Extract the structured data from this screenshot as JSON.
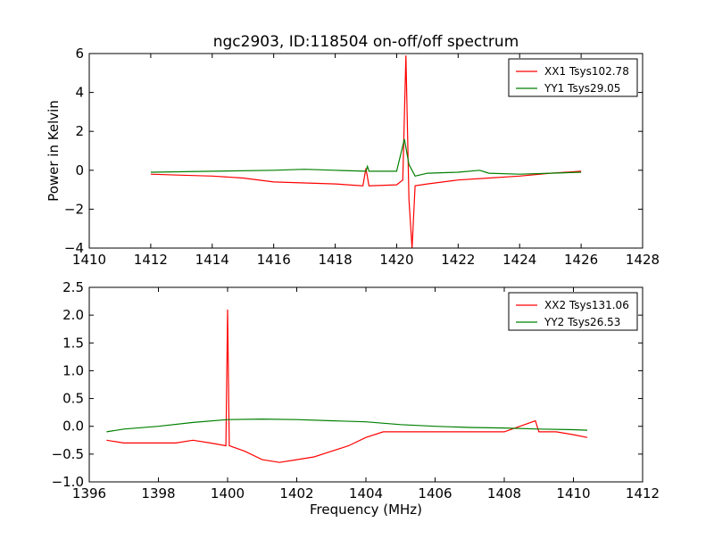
{
  "chart_data": [
    {
      "type": "line",
      "title": "ngc2903, ID:118504 on-off/off spectrum",
      "xlabel": "",
      "ylabel": "Power in Kelvin",
      "xlim": [
        1410,
        1428
      ],
      "ylim": [
        -4,
        6
      ],
      "xticks": [
        "1410",
        "1412",
        "1414",
        "1416",
        "1418",
        "1420",
        "1422",
        "1424",
        "1426",
        "1428"
      ],
      "yticks": [
        "−4",
        "−2",
        "0",
        "2",
        "4",
        "6"
      ],
      "grid": false,
      "legend_position": "top-right",
      "series": [
        {
          "name": "XX1 Tsys102.78",
          "color": "#ff0000",
          "x": [
            1412,
            1413,
            1414,
            1415,
            1416,
            1417,
            1418,
            1418.9,
            1419.0,
            1419.1,
            1420.0,
            1420.2,
            1420.3,
            1420.4,
            1420.5,
            1420.6,
            1421,
            1422,
            1423,
            1424,
            1425,
            1426
          ],
          "y": [
            -0.2,
            -0.25,
            -0.3,
            -0.4,
            -0.6,
            -0.65,
            -0.7,
            -0.8,
            0.1,
            -0.8,
            -0.75,
            -0.5,
            5.9,
            -1.5,
            -4.0,
            -0.8,
            -0.7,
            -0.5,
            -0.4,
            -0.3,
            -0.15,
            -0.05
          ]
        },
        {
          "name": "YY1 Tsys29.05",
          "color": "#008000",
          "x": [
            1412,
            1414,
            1416,
            1417,
            1418,
            1419,
            1419.05,
            1419.1,
            1420,
            1420.25,
            1420.4,
            1420.6,
            1421,
            1422,
            1422.7,
            1423,
            1424,
            1425,
            1426
          ],
          "y": [
            -0.1,
            -0.05,
            0.0,
            0.05,
            0.0,
            -0.05,
            0.2,
            -0.05,
            -0.05,
            1.6,
            0.3,
            -0.3,
            -0.15,
            -0.1,
            0.0,
            -0.15,
            -0.2,
            -0.15,
            -0.1
          ]
        }
      ]
    },
    {
      "type": "line",
      "title": "",
      "xlabel": "Frequency (MHz)",
      "ylabel": "",
      "xlim": [
        1396,
        1412
      ],
      "ylim": [
        -1.0,
        2.5
      ],
      "xticks": [
        "1396",
        "1398",
        "1400",
        "1402",
        "1404",
        "1406",
        "1408",
        "1410",
        "1412"
      ],
      "yticks": [
        "−1.0",
        "−0.5",
        "0.0",
        "0.5",
        "1.0",
        "1.5",
        "2.0",
        "2.5"
      ],
      "grid": false,
      "legend_position": "top-right",
      "series": [
        {
          "name": "XX2 Tsys131.06",
          "color": "#ff0000",
          "x": [
            1396.5,
            1397,
            1397.5,
            1398,
            1398.5,
            1399,
            1399.5,
            1399.95,
            1400.0,
            1400.05,
            1400.5,
            1401,
            1401.5,
            1402,
            1402.5,
            1403,
            1403.5,
            1404,
            1404.5,
            1405,
            1406,
            1407,
            1408,
            1408.9,
            1409,
            1409.5,
            1410,
            1410.4
          ],
          "y": [
            -0.25,
            -0.3,
            -0.3,
            -0.3,
            -0.3,
            -0.25,
            -0.3,
            -0.35,
            2.1,
            -0.35,
            -0.45,
            -0.6,
            -0.65,
            -0.6,
            -0.55,
            -0.45,
            -0.35,
            -0.2,
            -0.1,
            -0.1,
            -0.1,
            -0.1,
            -0.1,
            0.1,
            -0.1,
            -0.1,
            -0.15,
            -0.2
          ]
        },
        {
          "name": "YY2 Tsys26.53",
          "color": "#008000",
          "x": [
            1396.5,
            1397,
            1398,
            1399,
            1400,
            1401,
            1402,
            1403,
            1404,
            1405,
            1406,
            1407,
            1408,
            1409,
            1410,
            1410.4
          ],
          "y": [
            -0.1,
            -0.05,
            0.0,
            0.07,
            0.12,
            0.13,
            0.12,
            0.1,
            0.08,
            0.03,
            0.0,
            -0.02,
            -0.03,
            -0.05,
            -0.06,
            -0.07
          ]
        }
      ]
    }
  ]
}
